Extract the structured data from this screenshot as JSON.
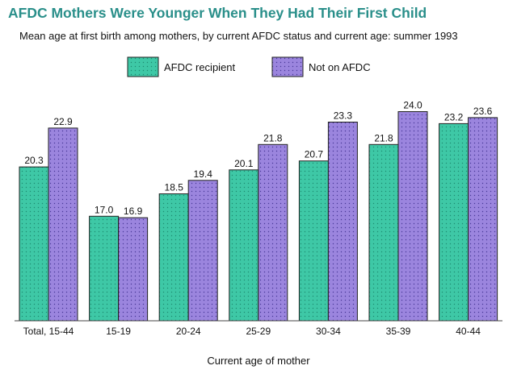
{
  "chart_data": {
    "type": "bar",
    "title": "AFDC Mothers Were Younger When They Had Their First Child",
    "subtitle": "Mean age at first birth among mothers, by current AFDC status and current age: summer 1993",
    "xlabel": "Current age of mother",
    "ylabel": "",
    "categories": [
      "Total, 15-44",
      "15-19",
      "20-24",
      "25-29",
      "30-34",
      "35-39",
      "40-44"
    ],
    "series": [
      {
        "name": "AFDC recipient",
        "values": [
          20.3,
          17.0,
          18.5,
          20.1,
          20.7,
          21.8,
          23.2
        ],
        "labels": [
          "20.3",
          "17.0",
          "18.5",
          "20.1",
          "20.7",
          "21.8",
          "23.2"
        ],
        "color": "#3ec8a6",
        "dot_color": "#1f8d72"
      },
      {
        "name": "Not on AFDC",
        "values": [
          22.9,
          16.9,
          19.4,
          21.8,
          23.3,
          24.0,
          23.6
        ],
        "labels": [
          "22.9",
          "16.9",
          "19.4",
          "21.8",
          "23.3",
          "24.0",
          "23.6"
        ],
        "color": "#9b85de",
        "dot_color": "#4a3a99"
      }
    ],
    "ylim": [
      10,
      25
    ],
    "legend": "top-center",
    "grid": false
  }
}
